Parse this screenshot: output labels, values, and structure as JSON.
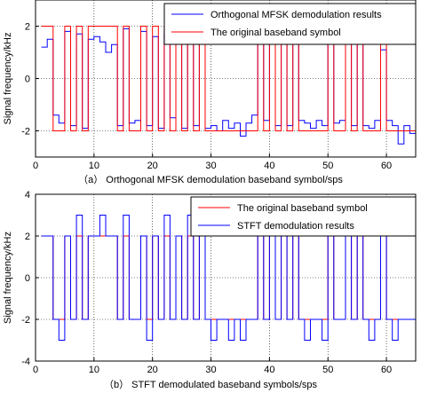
{
  "chart_data": [
    {
      "type": "line",
      "ylabel": "Signal frequency/kHz",
      "xlim": [
        0,
        65
      ],
      "ylim": [
        -3,
        3
      ],
      "xticks": [
        0,
        10,
        20,
        30,
        40,
        50,
        60
      ],
      "yticks": [
        -2,
        0,
        2
      ],
      "grid": "dotted",
      "legend_position": "top-right",
      "legend": [
        "Orthogonal MFSK demodulation results",
        "The original baseband symbol"
      ],
      "caption": "（a） Orthogonal MFSK demodulation baseband symbol/sps",
      "series": [
        {
          "name": "Orthogonal MFSK demodulation results",
          "color": "#0000ff",
          "values": [
            1.2,
            1.5,
            -1.4,
            -1.7,
            1.8,
            -1.8,
            1.7,
            -1.9,
            1.5,
            1.6,
            1.4,
            1.0,
            1.3,
            -1.8,
            1.9,
            -1.7,
            -1.6,
            1.8,
            -1.8,
            1.6,
            -1.9,
            1.7,
            -1.5,
            1.8,
            -1.9,
            1.7,
            -1.8,
            1.7,
            -1.9,
            -1.8,
            -2.0,
            -1.6,
            -1.9,
            -1.7,
            -2.2,
            -1.7,
            -1.4,
            1.6,
            -1.6,
            1.8,
            -1.8,
            1.8,
            -1.8,
            1.7,
            -1.6,
            -1.7,
            -1.9,
            -1.6,
            -1.8,
            1.6,
            -1.7,
            -1.6,
            1.9,
            -1.8,
            1.9,
            -1.8,
            -1.9,
            -1.6,
            1.1,
            -1.6,
            -1.8,
            -2.5,
            -1.8,
            -2.1
          ]
        },
        {
          "name": "The original baseband symbol",
          "color": "#ff0000",
          "values": [
            2,
            2,
            -2,
            -2,
            2,
            -2,
            2,
            -2,
            2,
            2,
            2,
            2,
            2,
            -2,
            2,
            -2,
            -2,
            2,
            -2,
            2,
            -2,
            2,
            -2,
            2,
            -2,
            2,
            -2,
            2,
            -2,
            -2,
            -2,
            -2,
            -2,
            -2,
            -2,
            -2,
            -2,
            2,
            -2,
            2,
            -2,
            2,
            -2,
            2,
            -2,
            -2,
            -2,
            -2,
            -2,
            2,
            -2,
            -2,
            2,
            -2,
            2,
            -2,
            -2,
            -2,
            2,
            -2,
            -2,
            -2,
            -2,
            -2
          ]
        }
      ]
    },
    {
      "type": "line",
      "ylabel": "Signal frequency/kHz",
      "xlim": [
        0,
        65
      ],
      "ylim": [
        -4,
        4
      ],
      "xticks": [
        0,
        10,
        20,
        30,
        40,
        50,
        60
      ],
      "yticks": [
        -4,
        -2,
        0,
        2,
        4
      ],
      "grid": "dotted",
      "legend_position": "top-right",
      "legend": [
        "The original baseband symbol",
        "STFT demodulation results"
      ],
      "caption": "（b） STFT demodulated baseband symbols/sps",
      "series": [
        {
          "name": "The original baseband symbol",
          "color": "#ff0000",
          "values": [
            2,
            2,
            -2,
            -2,
            2,
            -2,
            2,
            -2,
            2,
            2,
            2,
            2,
            2,
            -2,
            2,
            -2,
            -2,
            2,
            -2,
            2,
            -2,
            2,
            -2,
            2,
            -2,
            2,
            -2,
            2,
            -2,
            -2,
            -2,
            -2,
            -2,
            -2,
            -2,
            -2,
            -2,
            2,
            -2,
            2,
            -2,
            2,
            -2,
            2,
            -2,
            -2,
            -2,
            -2,
            -2,
            2,
            -2,
            -2,
            2,
            -2,
            2,
            -2,
            -2,
            -2,
            2,
            -2,
            -2,
            -2,
            -2,
            -2
          ]
        },
        {
          "name": "STFT demodulation results",
          "color": "#0000ff",
          "values": [
            2,
            2,
            -2,
            -3,
            2,
            -2,
            3,
            -2,
            2,
            2,
            3,
            2,
            2,
            -2,
            3,
            -2,
            -2,
            2,
            -3,
            2,
            -2,
            3,
            -2,
            2,
            -2,
            3,
            -2,
            2,
            -2,
            -3,
            -2,
            -2,
            -3,
            -2,
            -3,
            -2,
            -2,
            3,
            -2,
            2,
            -2,
            3,
            -2,
            2,
            -2,
            -3,
            -2,
            -2,
            -3,
            2,
            -2,
            -2,
            3,
            -2,
            2,
            -2,
            -3,
            -2,
            3,
            -2,
            -3,
            -2,
            -2,
            -2
          ]
        }
      ]
    }
  ]
}
